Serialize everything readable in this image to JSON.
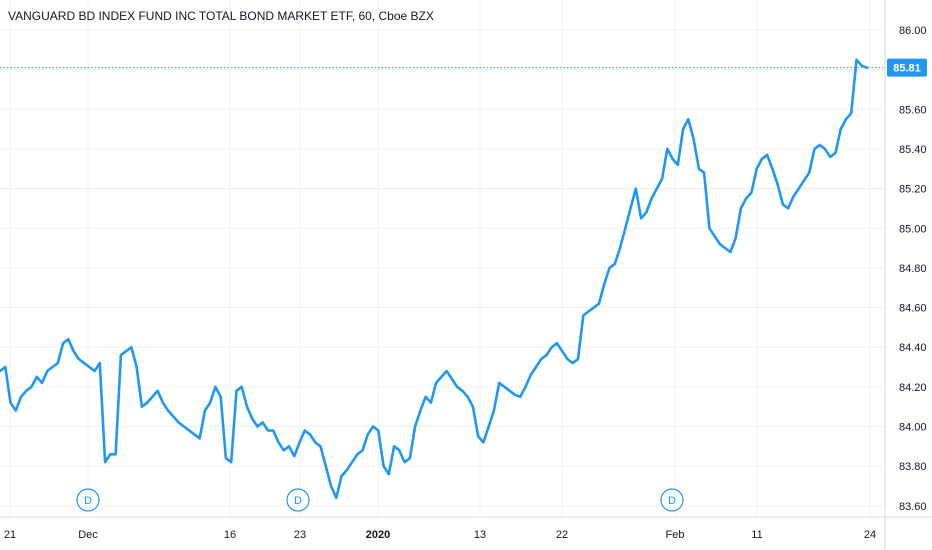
{
  "chart_data": {
    "type": "line",
    "title": "VANGUARD BD INDEX FUND INC TOTAL BOND MARKET ETF, 60, Cboe BZX",
    "last_price": "85.81",
    "ylim": [
      83.48,
      86.08
    ],
    "yticks": [
      "86.00",
      "85.80",
      "85.60",
      "85.40",
      "85.20",
      "85.00",
      "84.80",
      "84.60",
      "84.40",
      "84.20",
      "84.00",
      "83.80",
      "83.60"
    ],
    "xticks": [
      {
        "label": "21",
        "bold": false
      },
      {
        "label": "Dec",
        "bold": false
      },
      {
        "label": "16",
        "bold": false
      },
      {
        "label": "23",
        "bold": false
      },
      {
        "label": "2020",
        "bold": true
      },
      {
        "label": "13",
        "bold": false
      },
      {
        "label": "22",
        "bold": false
      },
      {
        "label": "Feb",
        "bold": false
      },
      {
        "label": "11",
        "bold": false
      },
      {
        "label": "24",
        "bold": false
      }
    ],
    "dividend_marker": "D",
    "dividend_count": 3,
    "grid": true,
    "line_color": "#2196f3",
    "series": [
      {
        "values": [
          84.28,
          84.3,
          84.12,
          84.08,
          84.15,
          84.18,
          84.2,
          84.25,
          84.22,
          84.28,
          84.3,
          84.32,
          84.42,
          84.44,
          84.38,
          84.34,
          84.32,
          84.3,
          84.28,
          84.32,
          83.82,
          83.86,
          83.86,
          84.36,
          84.38,
          84.4,
          84.3,
          84.1,
          84.12,
          84.15,
          84.18,
          84.12,
          84.08,
          84.05,
          84.02,
          84.0,
          83.98,
          83.96,
          83.94,
          84.08,
          84.12,
          84.2,
          84.15,
          83.84,
          83.82,
          84.18,
          84.2,
          84.1,
          84.04,
          84.0,
          84.02,
          83.98,
          83.98,
          83.92,
          83.88,
          83.9,
          83.85,
          83.92,
          83.98,
          83.96,
          83.92,
          83.9,
          83.8,
          83.7,
          83.64,
          83.75,
          83.78,
          83.82,
          83.86,
          83.88,
          83.96,
          84.0,
          83.98,
          83.8,
          83.76,
          83.9,
          83.88,
          83.82,
          83.84,
          84.0,
          84.08,
          84.15,
          84.12,
          84.22,
          84.25,
          84.28,
          84.24,
          84.2,
          84.18,
          84.15,
          84.1,
          83.95,
          83.92,
          84.0,
          84.08,
          84.22,
          84.2,
          84.18,
          84.16,
          84.15,
          84.2,
          84.26,
          84.3,
          84.34,
          84.36,
          84.4,
          84.42,
          84.38,
          84.34,
          84.32,
          84.34,
          84.56,
          84.58,
          84.6,
          84.62,
          84.72,
          84.8,
          84.82,
          84.9,
          85.0,
          85.1,
          85.2,
          85.05,
          85.08,
          85.15,
          85.2,
          85.25,
          85.4,
          85.35,
          85.32,
          85.5,
          85.55,
          85.45,
          85.3,
          85.28,
          85.0,
          84.96,
          84.92,
          84.9,
          84.88,
          84.95,
          85.1,
          85.15,
          85.18,
          85.3,
          85.35,
          85.37,
          85.3,
          85.22,
          85.12,
          85.1,
          85.16,
          85.2,
          85.24,
          85.28,
          85.4,
          85.42,
          85.4,
          85.36,
          85.38,
          85.5,
          85.55,
          85.58,
          85.85,
          85.82,
          85.81
        ]
      }
    ]
  }
}
